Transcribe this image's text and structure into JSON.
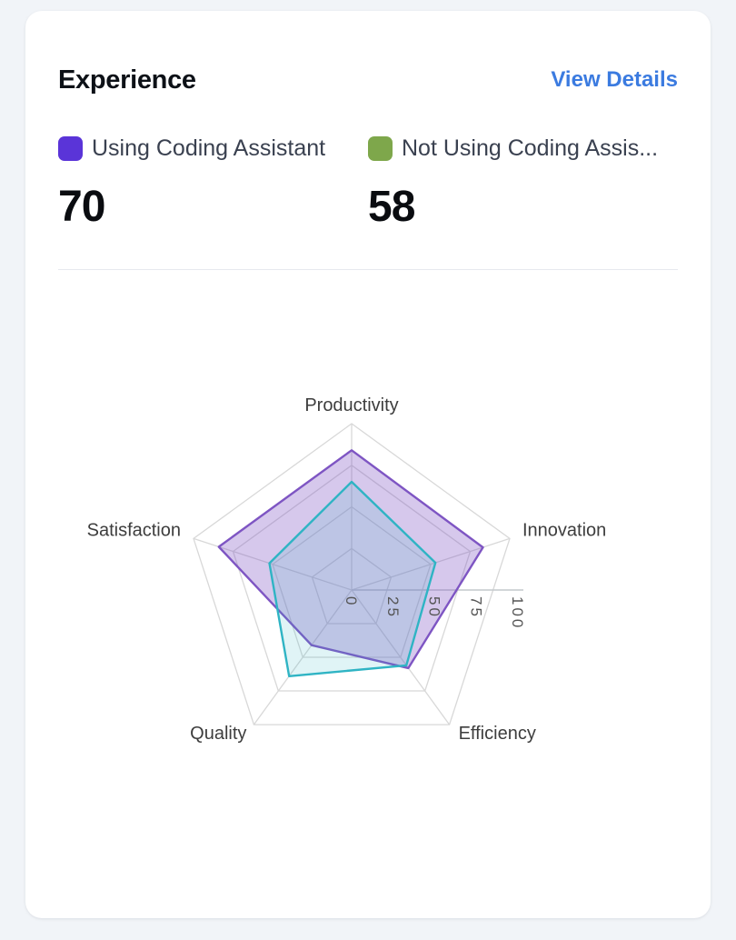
{
  "page": {
    "background": "#f1f4f8"
  },
  "header": {
    "title": "Experience",
    "link_label": "View Details",
    "link_color": "#3b7be0"
  },
  "metrics": [
    {
      "label": "Using Coding Assistant",
      "value": "70",
      "swatch_color": "#5a34d8"
    },
    {
      "label": "Not Using Coding Assis...",
      "value": "58",
      "swatch_color": "#7ea74b"
    }
  ],
  "chart_data": {
    "type": "radar",
    "categories": [
      "Productivity",
      "Innovation",
      "Efficiency",
      "Quality",
      "Satisfaction"
    ],
    "series": [
      {
        "name": "Using Coding Assistant",
        "values": [
          84,
          83,
          58,
          41,
          84
        ],
        "line_color": "#7e55c3",
        "fill_color": "rgba(126,85,195,0.32)"
      },
      {
        "name": "Not Using Coding Assis...",
        "values": [
          65,
          53,
          56,
          64,
          52
        ],
        "line_color": "#2fb4c4",
        "fill_color": "rgba(47,180,196,0.15)"
      }
    ],
    "ticks": [
      0,
      25,
      50,
      75,
      100
    ],
    "rmin": 0,
    "rmax": 100,
    "grid": "on",
    "grid_color": "#d8d8d8",
    "axis_line_color": "#c4c8cc",
    "tick_label_color": "#555555",
    "axis_label_color": "#3d3d3d",
    "legend_position": "top-outside-card"
  }
}
